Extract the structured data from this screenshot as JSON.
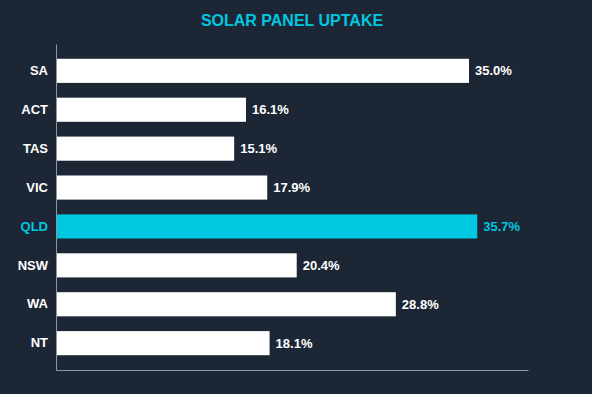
{
  "chart_data": {
    "type": "bar",
    "orientation": "horizontal",
    "title": "SOLAR PANEL UPTAKE",
    "categories": [
      "SA",
      "ACT",
      "TAS",
      "VIC",
      "QLD",
      "NSW",
      "WA",
      "NT"
    ],
    "values": [
      35.0,
      16.1,
      15.1,
      17.9,
      35.7,
      20.4,
      28.8,
      18.1
    ],
    "value_labels": [
      "35.0%",
      "16.1%",
      "15.1%",
      "17.9%",
      "35.7%",
      "20.4%",
      "28.8%",
      "18.1%"
    ],
    "colors": [
      "#ffffff",
      "#ffffff",
      "#ffffff",
      "#ffffff",
      "#00c8e0",
      "#ffffff",
      "#ffffff",
      "#ffffff"
    ],
    "xlim": [
      0,
      40
    ],
    "data_labels": true,
    "tick_labels": "y",
    "grid": false
  }
}
